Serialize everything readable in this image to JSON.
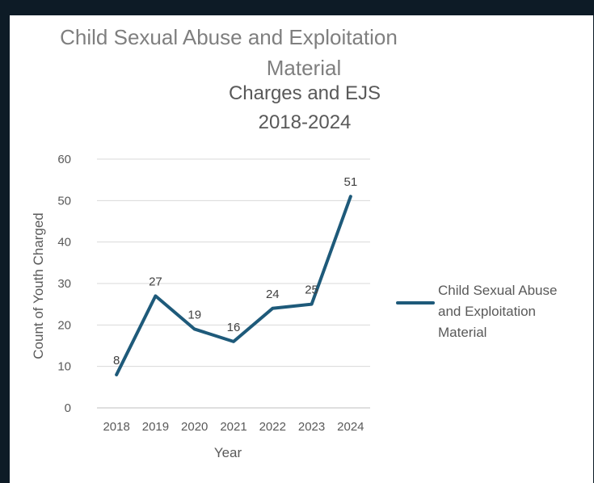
{
  "chart_data": {
    "type": "line",
    "title": "Child Sexual Abuse and Exploitation Material",
    "subtitle_lines": [
      "Charges and EJS",
      "2018-2024"
    ],
    "xlabel": "Year",
    "ylabel": "Count of Youth Charged",
    "categories": [
      "2018",
      "2019",
      "2020",
      "2021",
      "2022",
      "2023",
      "2024"
    ],
    "series": [
      {
        "name": "Child Sexual Abuse and Exploitation Material",
        "values": [
          8,
          27,
          19,
          16,
          24,
          25,
          51
        ],
        "color": "#1e5a7a"
      }
    ],
    "ylim": [
      0,
      60
    ],
    "yticks": [
      0,
      10,
      20,
      30,
      40,
      50,
      60
    ],
    "grid": true,
    "data_labels": true,
    "legend_position": "right"
  }
}
